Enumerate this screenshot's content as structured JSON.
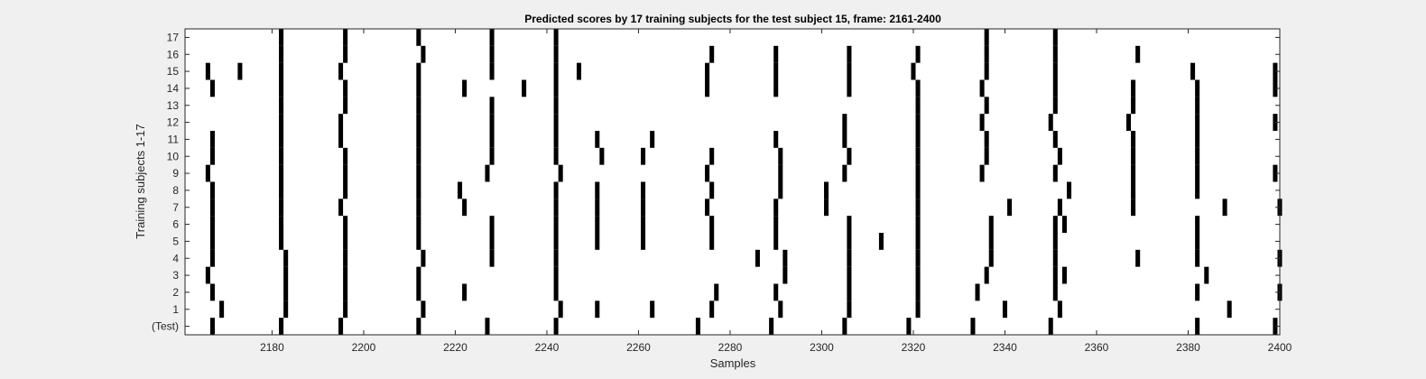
{
  "chart_data": {
    "type": "heatmap",
    "title": "Predicted scores by 17 training subjects for the test subject 15, frame: 2161-2400",
    "xlabel": "Samples",
    "ylabel": "Training subjects 1-17",
    "xlim": [
      2161,
      2400
    ],
    "xticks": [
      2180,
      2200,
      2220,
      2240,
      2260,
      2280,
      2300,
      2320,
      2340,
      2360,
      2380,
      2400
    ],
    "yticklabels": [
      "(Test)",
      "1",
      "2",
      "3",
      "4",
      "5",
      "6",
      "7",
      "8",
      "9",
      "10",
      "11",
      "12",
      "13",
      "14",
      "15",
      "16",
      "17"
    ],
    "background_color": "#ffffff",
    "mark_color": "#000000",
    "rows": [
      {
        "label": "(Test)",
        "x": [
          2167,
          2182,
          2195,
          2212,
          2227,
          2242,
          2273,
          2289,
          2305,
          2319,
          2333,
          2350,
          2382,
          2399
        ]
      },
      {
        "label": "1",
        "x": [
          2169,
          2183,
          2196,
          2213,
          2243,
          2251,
          2263,
          2276,
          2291,
          2306,
          2321,
          2340,
          2352,
          2389
        ]
      },
      {
        "label": "2",
        "x": [
          2167,
          2183,
          2196,
          2212,
          2222,
          2242,
          2277,
          2290,
          2306,
          2321,
          2334,
          2351,
          2382,
          2400
        ]
      },
      {
        "label": "3",
        "x": [
          2166,
          2183,
          2196,
          2212,
          2242,
          2292,
          2306,
          2321,
          2336,
          2351,
          2353,
          2384
        ]
      },
      {
        "label": "4",
        "x": [
          2167,
          2183,
          2196,
          2213,
          2228,
          2242,
          2286,
          2292,
          2306,
          2321,
          2337,
          2351,
          2369,
          2382,
          2400
        ]
      },
      {
        "label": "5",
        "x": [
          2167,
          2182,
          2196,
          2212,
          2228,
          2242,
          2251,
          2261,
          2276,
          2290,
          2306,
          2313,
          2321,
          2337,
          2351,
          2382
        ]
      },
      {
        "label": "6",
        "x": [
          2167,
          2182,
          2196,
          2212,
          2228,
          2242,
          2251,
          2261,
          2276,
          2290,
          2306,
          2321,
          2337,
          2351,
          2353,
          2382
        ]
      },
      {
        "label": "7",
        "x": [
          2167,
          2182,
          2195,
          2212,
          2222,
          2242,
          2251,
          2261,
          2275,
          2290,
          2301,
          2321,
          2341,
          2352,
          2368,
          2388,
          2400
        ]
      },
      {
        "label": "8",
        "x": [
          2167,
          2182,
          2196,
          2212,
          2221,
          2242,
          2251,
          2261,
          2276,
          2291,
          2301,
          2321,
          2354,
          2368,
          2382
        ]
      },
      {
        "label": "9",
        "x": [
          2166,
          2182,
          2196,
          2212,
          2227,
          2243,
          2275,
          2291,
          2305,
          2321,
          2335,
          2351,
          2368,
          2382,
          2399
        ]
      },
      {
        "label": "10",
        "x": [
          2167,
          2182,
          2196,
          2212,
          2228,
          2242,
          2252,
          2261,
          2276,
          2291,
          2306,
          2321,
          2336,
          2352,
          2368,
          2382
        ]
      },
      {
        "label": "11",
        "x": [
          2167,
          2182,
          2195,
          2212,
          2228,
          2242,
          2251,
          2263,
          2290,
          2305,
          2321,
          2336,
          2351,
          2368,
          2382
        ]
      },
      {
        "label": "12",
        "x": [
          2182,
          2195,
          2212,
          2228,
          2242,
          2305,
          2321,
          2335,
          2350,
          2367,
          2382,
          2399
        ]
      },
      {
        "label": "13",
        "x": [
          2182,
          2196,
          2212,
          2228,
          2242,
          2321,
          2336,
          2351,
          2368,
          2382
        ]
      },
      {
        "label": "14",
        "x": [
          2167,
          2182,
          2196,
          2212,
          2222,
          2235,
          2242,
          2275,
          2290,
          2306,
          2321,
          2335,
          2351,
          2368,
          2382,
          2399
        ]
      },
      {
        "label": "15",
        "x": [
          2166,
          2173,
          2182,
          2195,
          2212,
          2228,
          2242,
          2247,
          2275,
          2290,
          2306,
          2320,
          2336,
          2351,
          2381,
          2399
        ]
      },
      {
        "label": "16",
        "x": [
          2182,
          2196,
          2213,
          2228,
          2242,
          2276,
          2290,
          2306,
          2321,
          2336,
          2351,
          2369
        ]
      },
      {
        "label": "17",
        "x": [
          2182,
          2196,
          2212,
          2228,
          2242,
          2336,
          2351
        ]
      }
    ]
  }
}
